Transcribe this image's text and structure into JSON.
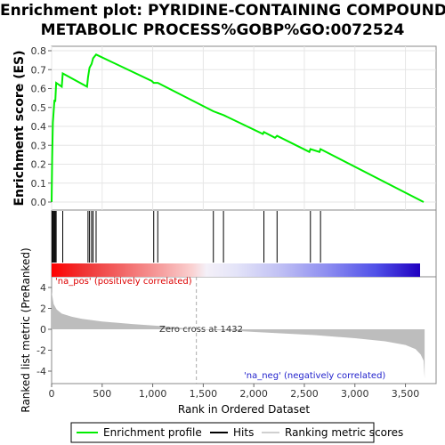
{
  "title_lines": [
    "Enrichment plot: PYRIDINE-CONTAINING COMPOUND",
    "METABOLIC PROCESS%GOBP%GO:0072524"
  ],
  "colors": {
    "es_line": "#00ee00",
    "hits": "#000000",
    "metric_fill": "#bdbdbd",
    "pos_label": "#dd0000",
    "neg_label": "#2222cc"
  },
  "chart_data": {
    "type": "line",
    "x_range": [
      0,
      3700
    ],
    "x_ticks": [
      "0",
      "500",
      "1,000",
      "1,500",
      "2,000",
      "2,500",
      "3,000",
      "3,500"
    ],
    "x_tick_values": [
      0,
      500,
      1000,
      1500,
      2000,
      2500,
      3000,
      3500
    ],
    "xlabel": "Rank in Ordered Dataset",
    "es_panel": {
      "ylabel": "Enrichment score (ES)",
      "ylim": [
        0,
        0.8
      ],
      "y_ticks": [
        "0.0",
        "0.1",
        "0.2",
        "0.3",
        "0.4",
        "0.5",
        "0.6",
        "0.7",
        "0.8"
      ],
      "y_tick_values": [
        0,
        0.1,
        0.2,
        0.3,
        0.4,
        0.5,
        0.6,
        0.7,
        0.8
      ],
      "profile": [
        [
          0,
          0.0
        ],
        [
          5,
          0.23
        ],
        [
          12,
          0.42
        ],
        [
          20,
          0.48
        ],
        [
          28,
          0.54
        ],
        [
          36,
          0.53
        ],
        [
          45,
          0.63
        ],
        [
          100,
          0.61
        ],
        [
          110,
          0.68
        ],
        [
          350,
          0.61
        ],
        [
          360,
          0.66
        ],
        [
          375,
          0.71
        ],
        [
          395,
          0.73
        ],
        [
          410,
          0.76
        ],
        [
          440,
          0.78
        ],
        [
          990,
          0.64
        ],
        [
          1010,
          0.63
        ],
        [
          1050,
          0.63
        ],
        [
          1600,
          0.48
        ],
        [
          1700,
          0.46
        ],
        [
          2090,
          0.36
        ],
        [
          2100,
          0.37
        ],
        [
          2210,
          0.34
        ],
        [
          2230,
          0.35
        ],
        [
          2550,
          0.265
        ],
        [
          2560,
          0.28
        ],
        [
          2650,
          0.265
        ],
        [
          2660,
          0.28
        ],
        [
          3680,
          0.0
        ]
      ]
    },
    "hits": [
      5,
      12,
      20,
      28,
      36,
      45,
      110,
      360,
      375,
      395,
      410,
      440,
      1010,
      1050,
      1600,
      1700,
      2100,
      2230,
      2560,
      2660
    ],
    "metric_panel": {
      "ylabel": "Ranked list metric (PreRanked)",
      "ylim": [
        -5,
        5
      ],
      "y_ticks": [
        "-4",
        "-2",
        "0",
        "2",
        "4"
      ],
      "y_tick_values": [
        -4,
        -2,
        0,
        2,
        4
      ],
      "curve": [
        [
          0,
          3.6
        ],
        [
          20,
          2.4
        ],
        [
          50,
          1.9
        ],
        [
          100,
          1.5
        ],
        [
          200,
          1.2
        ],
        [
          300,
          1.0
        ],
        [
          500,
          0.75
        ],
        [
          800,
          0.5
        ],
        [
          1100,
          0.3
        ],
        [
          1432,
          0.0
        ],
        [
          1800,
          -0.15
        ],
        [
          2200,
          -0.35
        ],
        [
          2600,
          -0.55
        ],
        [
          3000,
          -0.85
        ],
        [
          3300,
          -1.15
        ],
        [
          3500,
          -1.5
        ],
        [
          3600,
          -1.9
        ],
        [
          3650,
          -2.4
        ],
        [
          3680,
          -3.0
        ],
        [
          3690,
          -4.7
        ]
      ],
      "zero_cross_label": "Zero cross at 1432",
      "zero_cross": 1432,
      "pos_label": "'na_pos' (positively correlated)",
      "neg_label": "'na_neg' (negatively correlated)"
    },
    "legend": {
      "position": "bottom",
      "items": [
        "Enrichment profile",
        "Hits",
        "Ranking metric scores"
      ]
    }
  }
}
